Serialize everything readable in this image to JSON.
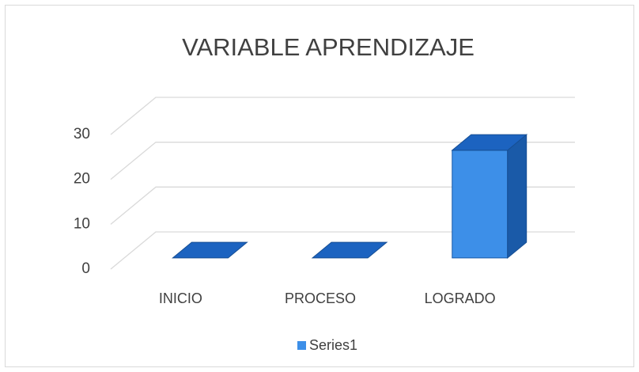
{
  "chart_data": {
    "type": "bar",
    "title": "VARIABLE APRENDIZAJE",
    "categories": [
      "INICIO",
      "PROCESO",
      "LOGRADO"
    ],
    "series": [
      {
        "name": "Series1",
        "color": "#3d8fe8",
        "values": [
          0,
          0,
          24
        ]
      }
    ],
    "ylim": [
      0,
      30
    ],
    "yticks": [
      0,
      10,
      20,
      30
    ],
    "grid": true,
    "legend": "bottom"
  }
}
